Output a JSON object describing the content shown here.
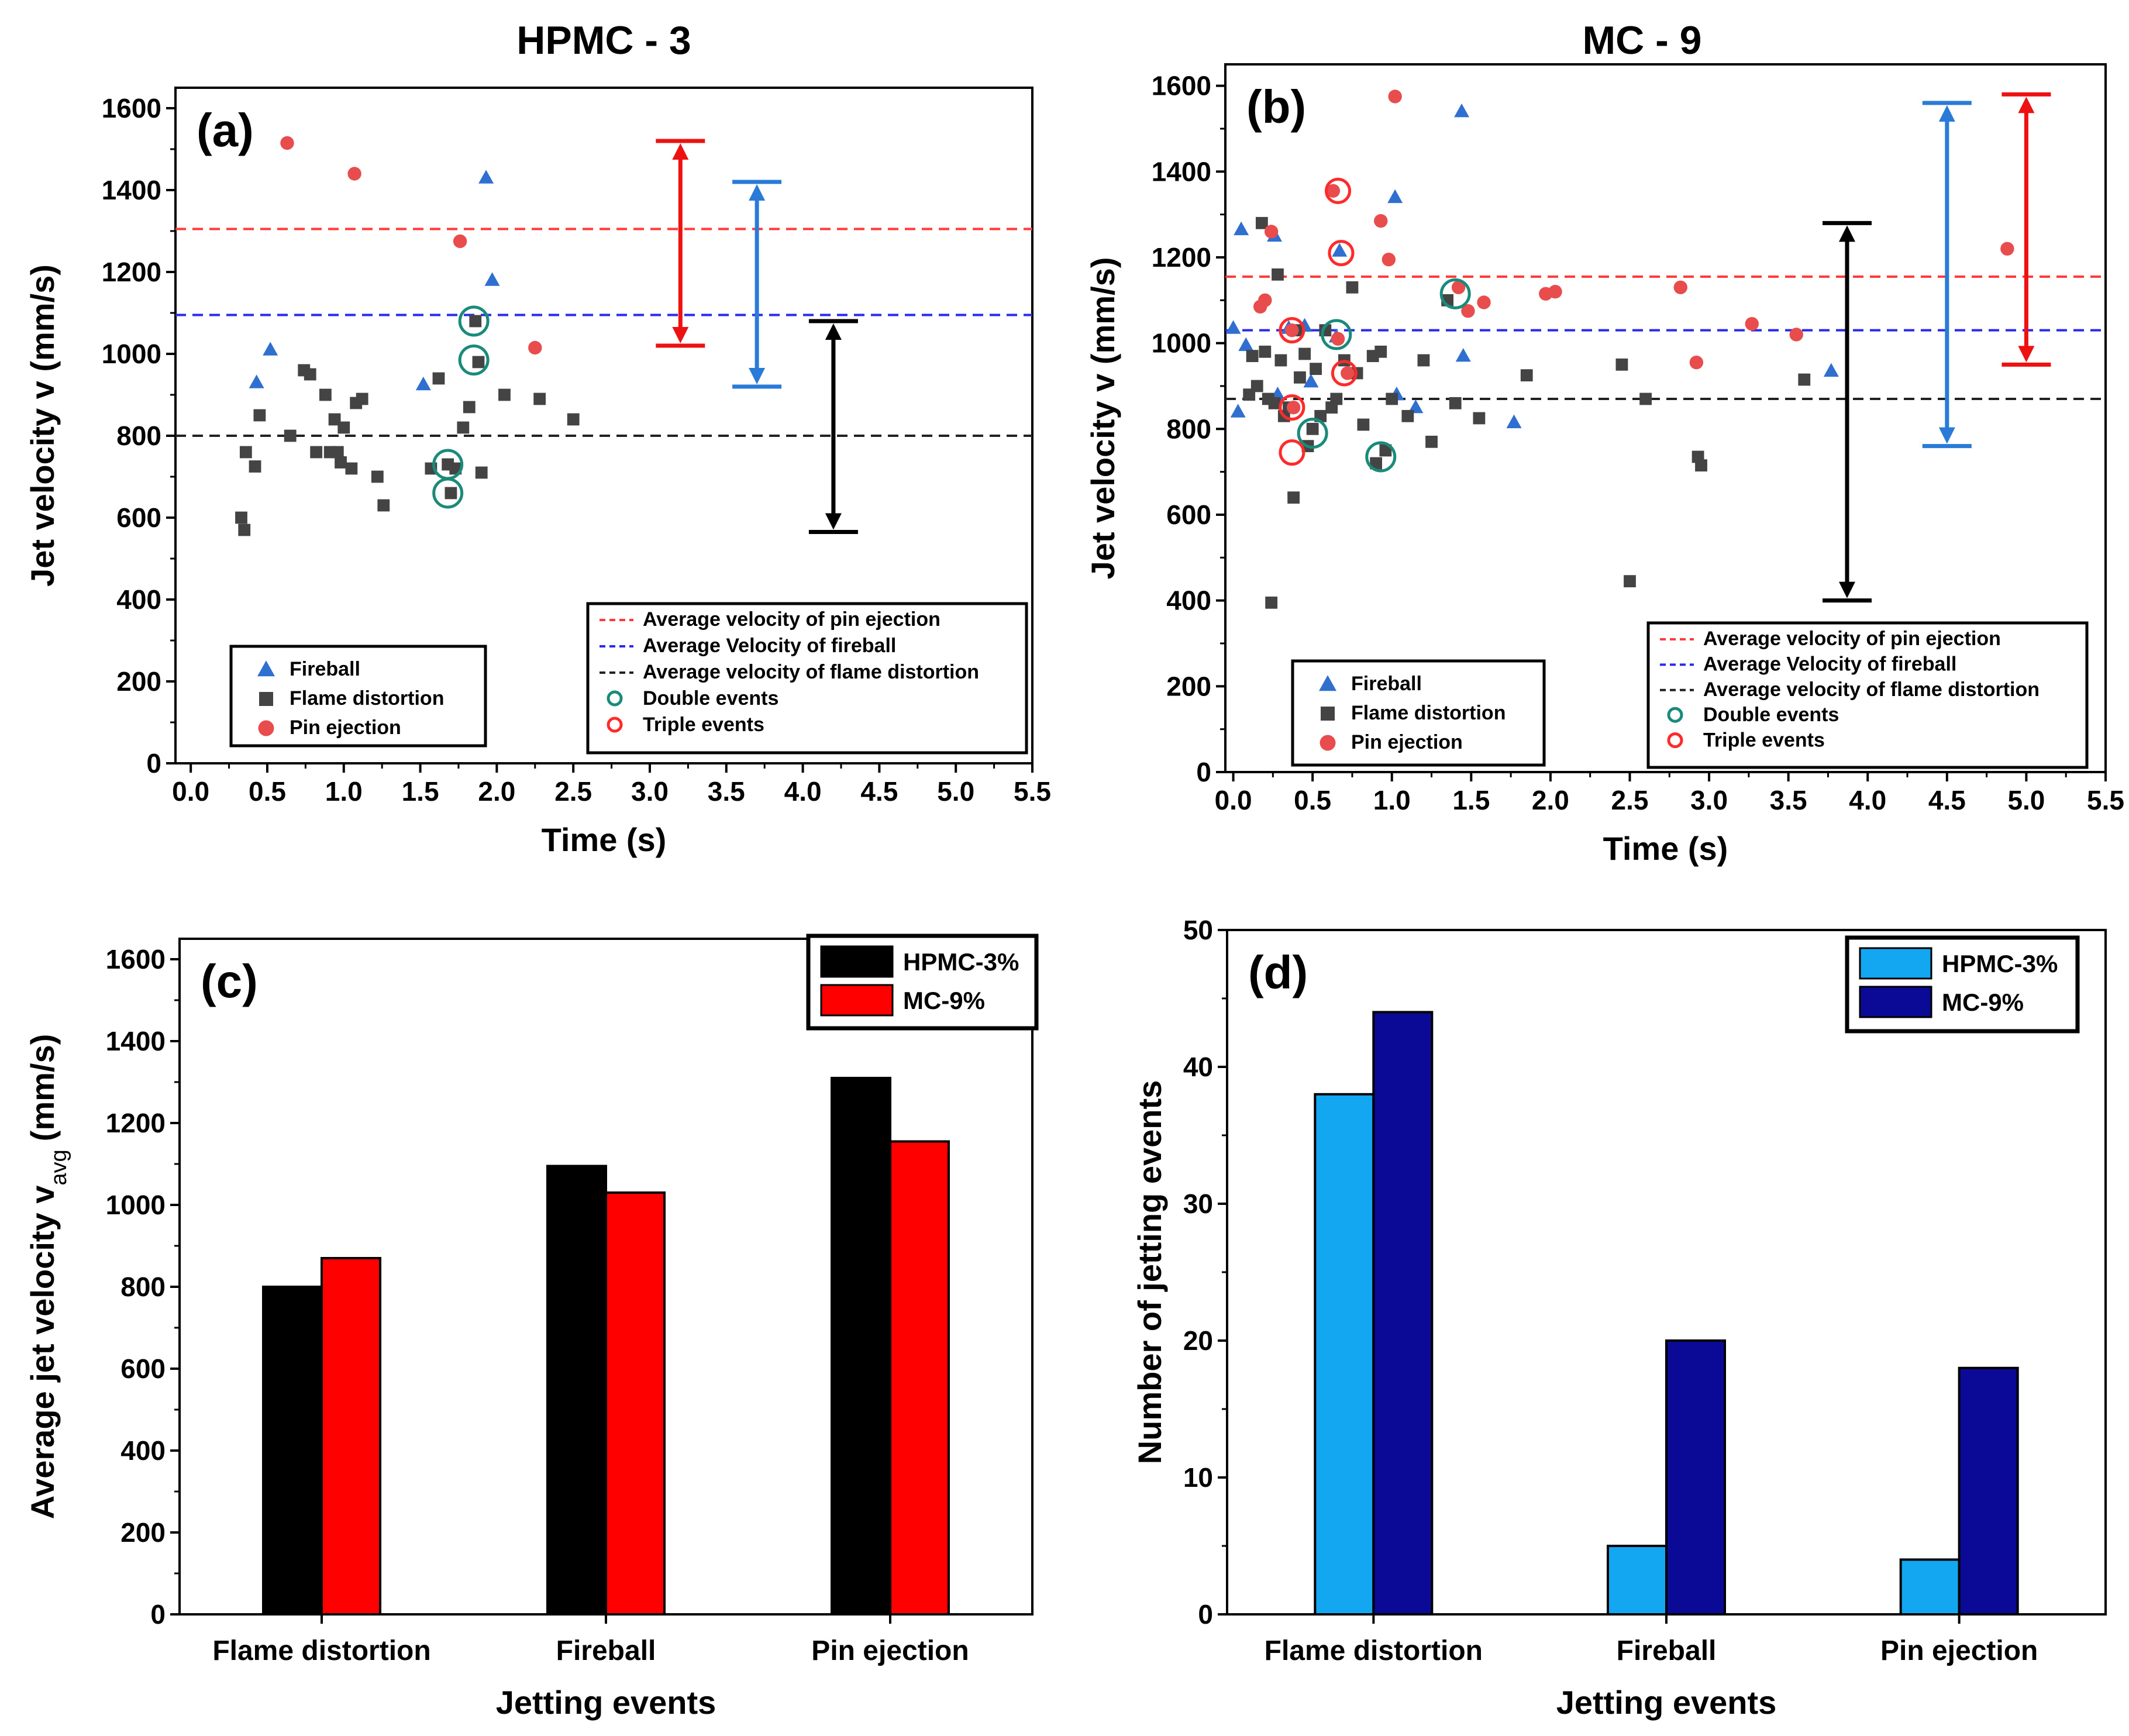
{
  "chart_data": [
    {
      "id": "a",
      "panel_label": "(a)",
      "type": "scatter",
      "title": "HPMC - 3",
      "xlabel": "Time (s)",
      "ylabel": "Jet velocity v (mm/s)",
      "xlim": [
        -0.1,
        5.5
      ],
      "ylim": [
        0,
        1650
      ],
      "xticks": [
        "0.0",
        "0.5",
        "1.0",
        "1.5",
        "2.0",
        "2.5",
        "3.0",
        "3.5",
        "4.0",
        "4.5",
        "5.0",
        "5.5"
      ],
      "yticks": [
        "0",
        "200",
        "400",
        "600",
        "800",
        "1000",
        "1200",
        "1400",
        "1600"
      ],
      "series": [
        {
          "name": "Fireball",
          "marker": "triangle",
          "color": "#2f6fd0",
          "x": [
            0.43,
            0.52,
            1.52,
            1.93,
            1.97
          ],
          "y": [
            930,
            1010,
            925,
            1430,
            1180
          ]
        },
        {
          "name": "Flame distortion",
          "marker": "square",
          "color": "#444444",
          "x": [
            0.33,
            0.35,
            0.36,
            0.42,
            0.45,
            0.65,
            0.74,
            0.78,
            0.82,
            0.88,
            0.91,
            0.94,
            0.96,
            0.98,
            1.0,
            1.05,
            1.08,
            1.12,
            1.22,
            1.26,
            1.57,
            1.62,
            1.68,
            1.7,
            1.73,
            1.78,
            1.82,
            1.86,
            1.88,
            1.9,
            2.05,
            2.28,
            2.5
          ],
          "y": [
            600,
            570,
            760,
            725,
            850,
            800,
            960,
            950,
            760,
            900,
            760,
            840,
            760,
            735,
            820,
            720,
            880,
            890,
            700,
            630,
            720,
            940,
            730,
            660,
            720,
            820,
            870,
            1080,
            980,
            710,
            900,
            890,
            840
          ]
        },
        {
          "name": "Pin ejection",
          "marker": "circle",
          "color": "#e84c4c",
          "x": [
            0.63,
            1.07,
            1.76,
            2.25
          ],
          "y": [
            1515,
            1440,
            1275,
            1015
          ]
        }
      ],
      "hlines": [
        {
          "label": "Average velocity of pin ejection",
          "y": 1305,
          "color": "#ff3a3a"
        },
        {
          "label": "Average Velocity of fireball",
          "y": 1095,
          "color": "#2a2aee"
        },
        {
          "label": "Average velocity of flame distortion",
          "y": 800,
          "color": "#222222"
        }
      ],
      "event_markers": [
        {
          "label": "Double events",
          "color": "#1a8a7a"
        },
        {
          "label": "Triple events",
          "color": "#ff2a2a"
        }
      ],
      "circles": [
        {
          "x": 1.68,
          "y": 730,
          "kind": "double"
        },
        {
          "x": 1.68,
          "y": 660,
          "kind": "double"
        },
        {
          "x": 1.85,
          "y": 1080,
          "kind": "double"
        },
        {
          "x": 1.85,
          "y": 985,
          "kind": "double"
        }
      ],
      "ranges": [
        {
          "x": 3.2,
          "ymin": 1020,
          "ymax": 1520,
          "color": "#ee1111"
        },
        {
          "x": 3.7,
          "ymin": 920,
          "ymax": 1420,
          "color": "#2a7ad8"
        },
        {
          "x": 4.2,
          "ymin": 565,
          "ymax": 1080,
          "color": "#000000"
        }
      ],
      "legend_markers": [
        "Fireball",
        "Flame distortion",
        "Pin ejection"
      ]
    },
    {
      "id": "b",
      "panel_label": "(b)",
      "type": "scatter",
      "title": "MC - 9",
      "xlabel": "Time (s)",
      "ylabel": "Jet velocity v (mm/s)",
      "xlim": [
        -0.05,
        5.5
      ],
      "ylim": [
        0,
        1650
      ],
      "xticks": [
        "0.0",
        "0.5",
        "1.0",
        "1.5",
        "2.0",
        "2.5",
        "3.0",
        "3.5",
        "4.0",
        "4.5",
        "5.0",
        "5.5"
      ],
      "yticks": [
        "0",
        "200",
        "400",
        "600",
        "800",
        "1000",
        "1200",
        "1400",
        "1600"
      ],
      "series": [
        {
          "name": "Fireball",
          "marker": "triangle",
          "color": "#2f6fd0",
          "x": [
            0.0,
            0.03,
            0.05,
            0.08,
            0.26,
            0.28,
            0.35,
            0.45,
            0.49,
            0.65,
            0.67,
            1.02,
            1.03,
            1.15,
            1.44,
            1.45,
            1.77,
            3.77
          ],
          "y": [
            1035,
            840,
            1265,
            995,
            1250,
            880,
            1035,
            1040,
            910,
            1015,
            1215,
            1340,
            880,
            850,
            1540,
            970,
            815,
            935
          ]
        },
        {
          "name": "Flame distortion",
          "marker": "square",
          "color": "#444444",
          "x": [
            0.1,
            0.12,
            0.15,
            0.18,
            0.2,
            0.22,
            0.24,
            0.26,
            0.28,
            0.3,
            0.32,
            0.35,
            0.38,
            0.4,
            0.42,
            0.45,
            0.47,
            0.5,
            0.52,
            0.55,
            0.58,
            0.62,
            0.65,
            0.7,
            0.75,
            0.78,
            0.82,
            0.88,
            0.9,
            0.93,
            0.96,
            1.0,
            1.1,
            1.2,
            1.25,
            1.35,
            1.4,
            1.55,
            1.85,
            2.45,
            2.5,
            2.6,
            2.93,
            2.95,
            3.6
          ],
          "y": [
            880,
            970,
            900,
            1280,
            980,
            870,
            395,
            860,
            1160,
            960,
            830,
            850,
            640,
            1030,
            920,
            975,
            760,
            800,
            940,
            830,
            1030,
            850,
            870,
            960,
            1130,
            930,
            810,
            970,
            720,
            980,
            750,
            870,
            830,
            960,
            770,
            1100,
            860,
            825,
            925,
            950,
            445,
            870,
            735,
            715,
            915
          ]
        },
        {
          "name": "Pin ejection",
          "marker": "circle",
          "color": "#e84c4c",
          "x": [
            0.17,
            0.2,
            0.24,
            0.37,
            0.38,
            0.63,
            0.66,
            0.72,
            0.93,
            0.98,
            1.02,
            1.42,
            1.48,
            1.58,
            1.97,
            2.03,
            2.82,
            2.92,
            3.27,
            3.55,
            4.88
          ],
          "y": [
            1085,
            1100,
            1260,
            1030,
            850,
            1355,
            1010,
            930,
            1285,
            1195,
            1575,
            1130,
            1075,
            1095,
            1115,
            1120,
            1130,
            955,
            1045,
            1020,
            1220
          ]
        }
      ],
      "hlines": [
        {
          "label": "Average velocity of pin ejection",
          "y": 1155,
          "color": "#ff3a3a"
        },
        {
          "label": "Average Velocity of fireball",
          "y": 1030,
          "color": "#2a2aee"
        },
        {
          "label": "Average velocity of flame distortion",
          "y": 870,
          "color": "#222222"
        }
      ],
      "event_markers": [
        {
          "label": "Double events",
          "color": "#1a8a7a"
        },
        {
          "label": "Triple events",
          "color": "#ff2a2a"
        }
      ],
      "circles": [
        {
          "x": 0.5,
          "y": 790,
          "kind": "double"
        },
        {
          "x": 0.65,
          "y": 1020,
          "kind": "double"
        },
        {
          "x": 0.93,
          "y": 735,
          "kind": "double"
        },
        {
          "x": 1.4,
          "y": 1115,
          "kind": "double"
        },
        {
          "x": 0.37,
          "y": 1030,
          "kind": "triple"
        },
        {
          "x": 0.37,
          "y": 850,
          "kind": "triple"
        },
        {
          "x": 0.37,
          "y": 745,
          "kind": "triple"
        },
        {
          "x": 0.66,
          "y": 1355,
          "kind": "triple"
        },
        {
          "x": 0.68,
          "y": 1210,
          "kind": "triple"
        },
        {
          "x": 0.7,
          "y": 930,
          "kind": "triple"
        }
      ],
      "ranges": [
        {
          "x": 3.87,
          "ymin": 400,
          "ymax": 1280,
          "color": "#000000"
        },
        {
          "x": 4.5,
          "ymin": 760,
          "ymax": 1560,
          "color": "#2a7ad8"
        },
        {
          "x": 5.0,
          "ymin": 950,
          "ymax": 1580,
          "color": "#ee1111"
        }
      ],
      "legend_markers": [
        "Fireball",
        "Flame distortion",
        "Pin ejection"
      ]
    },
    {
      "id": "c",
      "panel_label": "(c)",
      "type": "bar",
      "title": "",
      "xlabel": "Jetting events",
      "ylabel": "Average jet velocity v",
      "ylabel_sub": "avg",
      "ylabel_units": "(mm/s)",
      "ylim": [
        0,
        1650
      ],
      "yticks": [
        "0",
        "200",
        "400",
        "600",
        "800",
        "1000",
        "1200",
        "1400",
        "1600"
      ],
      "categories": [
        "Flame distortion",
        "Fireball",
        "Pin ejection"
      ],
      "series": [
        {
          "name": "HPMC-3%",
          "color": "#000000",
          "values": [
            800,
            1095,
            1310
          ]
        },
        {
          "name": "MC-9%",
          "color": "#ff0000",
          "values": [
            870,
            1030,
            1155
          ]
        }
      ]
    },
    {
      "id": "d",
      "panel_label": "(d)",
      "type": "bar",
      "title": "",
      "xlabel": "Jetting events",
      "ylabel": "Number of jetting events",
      "ylim": [
        0,
        50
      ],
      "yticks": [
        "0",
        "10",
        "20",
        "30",
        "40",
        "50"
      ],
      "categories": [
        "Flame distortion",
        "Fireball",
        "Pin ejection"
      ],
      "series": [
        {
          "name": "HPMC-3%",
          "color": "#13a7f2",
          "values": [
            38,
            5,
            4
          ]
        },
        {
          "name": "MC-9%",
          "color": "#0a0a96",
          "values": [
            44,
            20,
            18
          ]
        }
      ]
    }
  ]
}
